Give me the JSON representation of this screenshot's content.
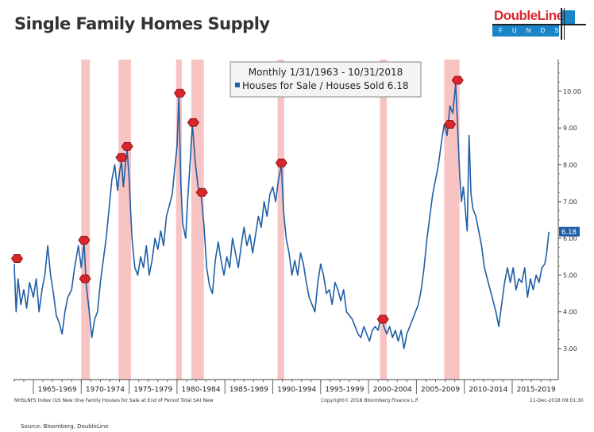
{
  "page": {
    "title": "Single Family Homes Supply",
    "logo": {
      "name": "DoubleLine",
      "sub": "FUNDS"
    },
    "footer_left": "NHSLNFS Index (US New One Family Houses for Sale at End of Period Total SA) New",
    "footer_center": "Copyright© 2018 Bloomberg Finance L.P.",
    "footer_right": "11-Dec-2018 09:01:30",
    "source": "Source: Bloomberg, DoubleLine"
  },
  "chart_data": {
    "type": "line",
    "title": "Single Family Homes Supply",
    "legend": {
      "header": "Monthly 1/31/1963 - 10/31/2018",
      "series_label": "Houses for Sale / Houses Sold 6.18",
      "placement": "top-center"
    },
    "xlim": [
      1963.0,
      2019.8
    ],
    "ylim": [
      2.2,
      10.8
    ],
    "yticks": [
      3,
      4,
      5,
      6,
      7,
      8,
      9,
      10
    ],
    "ytick_labels": [
      "3.00",
      "4.00",
      "5.00",
      "6.00",
      "7.00",
      "8.00",
      "9.00",
      "10.00"
    ],
    "xtick_labels": [
      "1965-1969",
      "1970-1974",
      "1975-1979",
      "1980-1984",
      "1985-1989",
      "1990-1994",
      "1995-1999",
      "2000-2004",
      "2005-2009",
      "2010-2014",
      "2015-2019"
    ],
    "xtick_starts": [
      1965,
      1970,
      1975,
      1980,
      1985,
      1990,
      1995,
      2000,
      2005,
      2010,
      2015
    ],
    "last_value": 6.18,
    "last_value_label": "6.18",
    "colors": {
      "line": "#1f5fa6",
      "recession": "#f7b9b9",
      "marker": "#d9262b"
    },
    "recessions": [
      [
        1970.0,
        1970.9
      ],
      [
        1973.9,
        1975.2
      ],
      [
        1979.9,
        1980.5
      ],
      [
        1981.5,
        1982.8
      ],
      [
        1990.5,
        1991.2
      ],
      [
        2001.2,
        2001.9
      ],
      [
        2007.9,
        2009.5
      ]
    ],
    "markers": [
      [
        1963.3,
        5.45
      ],
      [
        1970.3,
        5.95
      ],
      [
        1970.4,
        4.9
      ],
      [
        1974.2,
        8.2
      ],
      [
        1974.8,
        8.5
      ],
      [
        1980.3,
        9.95
      ],
      [
        1981.7,
        9.15
      ],
      [
        1982.6,
        7.25
      ],
      [
        1990.9,
        8.05
      ],
      [
        2001.5,
        3.8
      ],
      [
        2008.5,
        9.1
      ],
      [
        2009.3,
        10.3
      ]
    ],
    "series": [
      {
        "name": "Houses for Sale / Houses Sold",
        "points": [
          [
            1963.0,
            5.3
          ],
          [
            1963.2,
            4.0
          ],
          [
            1963.4,
            4.9
          ],
          [
            1963.7,
            4.2
          ],
          [
            1964.0,
            4.6
          ],
          [
            1964.3,
            4.1
          ],
          [
            1964.6,
            4.8
          ],
          [
            1965.0,
            4.4
          ],
          [
            1965.3,
            4.9
          ],
          [
            1965.6,
            4.0
          ],
          [
            1965.9,
            4.6
          ],
          [
            1966.2,
            5.0
          ],
          [
            1966.5,
            5.8
          ],
          [
            1966.8,
            5.0
          ],
          [
            1967.1,
            4.5
          ],
          [
            1967.4,
            3.9
          ],
          [
            1967.7,
            3.7
          ],
          [
            1968.0,
            3.4
          ],
          [
            1968.3,
            4.0
          ],
          [
            1968.6,
            4.4
          ],
          [
            1969.0,
            4.6
          ],
          [
            1969.3,
            5.2
          ],
          [
            1969.7,
            5.8
          ],
          [
            1970.0,
            5.2
          ],
          [
            1970.3,
            5.9
          ],
          [
            1970.5,
            4.8
          ],
          [
            1970.8,
            4.1
          ],
          [
            1971.1,
            3.3
          ],
          [
            1971.4,
            3.8
          ],
          [
            1971.7,
            4.0
          ],
          [
            1972.0,
            4.8
          ],
          [
            1972.3,
            5.4
          ],
          [
            1972.6,
            6.0
          ],
          [
            1972.9,
            6.8
          ],
          [
            1973.2,
            7.6
          ],
          [
            1973.5,
            8.0
          ],
          [
            1973.8,
            7.3
          ],
          [
            1974.0,
            7.8
          ],
          [
            1974.2,
            8.1
          ],
          [
            1974.4,
            7.4
          ],
          [
            1974.6,
            8.0
          ],
          [
            1974.8,
            8.4
          ],
          [
            1975.0,
            7.6
          ],
          [
            1975.3,
            6.0
          ],
          [
            1975.6,
            5.2
          ],
          [
            1975.9,
            5.0
          ],
          [
            1976.2,
            5.5
          ],
          [
            1976.5,
            5.2
          ],
          [
            1976.8,
            5.8
          ],
          [
            1977.1,
            5.0
          ],
          [
            1977.4,
            5.4
          ],
          [
            1977.7,
            6.0
          ],
          [
            1978.0,
            5.7
          ],
          [
            1978.3,
            6.2
          ],
          [
            1978.6,
            5.8
          ],
          [
            1978.9,
            6.6
          ],
          [
            1979.2,
            6.9
          ],
          [
            1979.5,
            7.2
          ],
          [
            1979.8,
            8.0
          ],
          [
            1980.0,
            8.5
          ],
          [
            1980.2,
            9.9
          ],
          [
            1980.4,
            7.5
          ],
          [
            1980.6,
            6.4
          ],
          [
            1980.9,
            6.0
          ],
          [
            1981.1,
            7.0
          ],
          [
            1981.4,
            8.2
          ],
          [
            1981.6,
            9.1
          ],
          [
            1981.9,
            8.1
          ],
          [
            1982.2,
            7.4
          ],
          [
            1982.5,
            7.2
          ],
          [
            1982.8,
            6.4
          ],
          [
            1983.1,
            5.2
          ],
          [
            1983.4,
            4.7
          ],
          [
            1983.7,
            4.5
          ],
          [
            1984.0,
            5.4
          ],
          [
            1984.3,
            5.9
          ],
          [
            1984.6,
            5.4
          ],
          [
            1984.9,
            5.0
          ],
          [
            1985.2,
            5.5
          ],
          [
            1985.5,
            5.2
          ],
          [
            1985.8,
            6.0
          ],
          [
            1986.1,
            5.6
          ],
          [
            1986.4,
            5.2
          ],
          [
            1986.7,
            5.8
          ],
          [
            1987.0,
            6.3
          ],
          [
            1987.3,
            5.8
          ],
          [
            1987.6,
            6.1
          ],
          [
            1987.9,
            5.6
          ],
          [
            1988.2,
            6.1
          ],
          [
            1988.5,
            6.6
          ],
          [
            1988.8,
            6.3
          ],
          [
            1989.1,
            7.0
          ],
          [
            1989.4,
            6.6
          ],
          [
            1989.7,
            7.2
          ],
          [
            1990.0,
            7.4
          ],
          [
            1990.3,
            7.0
          ],
          [
            1990.6,
            7.6
          ],
          [
            1990.9,
            8.0
          ],
          [
            1991.1,
            6.8
          ],
          [
            1991.4,
            6.0
          ],
          [
            1991.7,
            5.6
          ],
          [
            1992.0,
            5.0
          ],
          [
            1992.3,
            5.4
          ],
          [
            1992.6,
            5.0
          ],
          [
            1992.9,
            5.6
          ],
          [
            1993.2,
            5.3
          ],
          [
            1993.5,
            4.8
          ],
          [
            1993.8,
            4.4
          ],
          [
            1994.1,
            4.2
          ],
          [
            1994.4,
            4.0
          ],
          [
            1994.7,
            4.8
          ],
          [
            1995.0,
            5.3
          ],
          [
            1995.3,
            5.0
          ],
          [
            1995.6,
            4.5
          ],
          [
            1995.9,
            4.6
          ],
          [
            1996.2,
            4.2
          ],
          [
            1996.5,
            4.8
          ],
          [
            1996.8,
            4.6
          ],
          [
            1997.1,
            4.3
          ],
          [
            1997.4,
            4.6
          ],
          [
            1997.7,
            4.0
          ],
          [
            1998.0,
            3.9
          ],
          [
            1998.3,
            3.8
          ],
          [
            1998.6,
            3.6
          ],
          [
            1998.9,
            3.4
          ],
          [
            1999.2,
            3.3
          ],
          [
            1999.5,
            3.6
          ],
          [
            1999.8,
            3.4
          ],
          [
            2000.1,
            3.2
          ],
          [
            2000.4,
            3.5
          ],
          [
            2000.7,
            3.6
          ],
          [
            2001.0,
            3.5
          ],
          [
            2001.3,
            3.9
          ],
          [
            2001.6,
            3.6
          ],
          [
            2001.9,
            3.4
          ],
          [
            2002.2,
            3.6
          ],
          [
            2002.5,
            3.3
          ],
          [
            2002.8,
            3.5
          ],
          [
            2003.1,
            3.2
          ],
          [
            2003.4,
            3.5
          ],
          [
            2003.7,
            3.0
          ],
          [
            2004.0,
            3.4
          ],
          [
            2004.3,
            3.6
          ],
          [
            2004.6,
            3.8
          ],
          [
            2004.9,
            4.0
          ],
          [
            2005.2,
            4.2
          ],
          [
            2005.5,
            4.6
          ],
          [
            2005.8,
            5.2
          ],
          [
            2006.1,
            6.0
          ],
          [
            2006.4,
            6.6
          ],
          [
            2006.7,
            7.2
          ],
          [
            2007.0,
            7.6
          ],
          [
            2007.3,
            8.0
          ],
          [
            2007.6,
            8.6
          ],
          [
            2007.9,
            9.1
          ],
          [
            2008.2,
            8.8
          ],
          [
            2008.5,
            9.6
          ],
          [
            2008.8,
            9.4
          ],
          [
            2009.1,
            10.2
          ],
          [
            2009.3,
            9.0
          ],
          [
            2009.5,
            7.8
          ],
          [
            2009.7,
            7.0
          ],
          [
            2009.9,
            7.4
          ],
          [
            2010.1,
            6.8
          ],
          [
            2010.3,
            6.2
          ],
          [
            2010.5,
            8.8
          ],
          [
            2010.7,
            7.2
          ],
          [
            2010.9,
            6.8
          ],
          [
            2011.2,
            6.6
          ],
          [
            2011.5,
            6.2
          ],
          [
            2011.8,
            5.8
          ],
          [
            2012.1,
            5.2
          ],
          [
            2012.4,
            4.9
          ],
          [
            2012.7,
            4.6
          ],
          [
            2013.0,
            4.3
          ],
          [
            2013.3,
            4.0
          ],
          [
            2013.6,
            3.6
          ],
          [
            2013.9,
            4.2
          ],
          [
            2014.2,
            4.8
          ],
          [
            2014.5,
            5.2
          ],
          [
            2014.8,
            4.8
          ],
          [
            2015.1,
            5.2
          ],
          [
            2015.4,
            4.6
          ],
          [
            2015.7,
            4.9
          ],
          [
            2016.0,
            4.8
          ],
          [
            2016.3,
            5.2
          ],
          [
            2016.6,
            4.4
          ],
          [
            2016.9,
            4.9
          ],
          [
            2017.2,
            4.6
          ],
          [
            2017.5,
            5.0
          ],
          [
            2017.8,
            4.8
          ],
          [
            2018.1,
            5.2
          ],
          [
            2018.4,
            5.3
          ],
          [
            2018.6,
            5.6
          ],
          [
            2018.83,
            6.18
          ]
        ]
      }
    ]
  }
}
